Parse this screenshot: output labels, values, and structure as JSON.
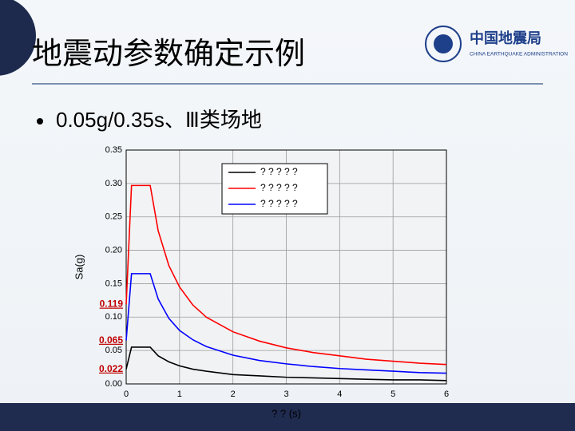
{
  "title": "地震动参数确定示例",
  "logo": {
    "name": "中国地震局",
    "english": "CHINA EARTHQUAKE ADMINISTRATION"
  },
  "bullet": "0.05g/0.35s、Ⅲ类场地",
  "chart_data": {
    "type": "line",
    "x_label": "? ?  (s)",
    "y_label": "Sa(g)",
    "x": [
      0,
      0.1,
      0.45,
      0.6,
      0.8,
      1,
      1.25,
      1.5,
      2,
      2.5,
      3,
      3.5,
      4,
      4.5,
      5,
      5.5,
      6
    ],
    "series": [
      {
        "name": "? ? ? ? ?",
        "color": "#000000",
        "values": [
          0.022,
          0.055,
          0.055,
          0.042,
          0.033,
          0.027,
          0.022,
          0.019,
          0.014,
          0.012,
          0.01,
          0.009,
          0.008,
          0.007,
          0.006,
          0.006,
          0.005
        ]
      },
      {
        "name": "? ? ? ? ?",
        "color": "#ff0000",
        "values": [
          0.119,
          0.297,
          0.297,
          0.229,
          0.177,
          0.145,
          0.118,
          0.1,
          0.078,
          0.064,
          0.054,
          0.047,
          0.042,
          0.037,
          0.034,
          0.031,
          0.029
        ]
      },
      {
        "name": "? ? ? ? ?",
        "color": "#0000ff",
        "values": [
          0.065,
          0.165,
          0.165,
          0.127,
          0.098,
          0.08,
          0.066,
          0.056,
          0.043,
          0.035,
          0.03,
          0.026,
          0.023,
          0.021,
          0.019,
          0.017,
          0.016
        ]
      }
    ],
    "xlim": [
      0,
      6
    ],
    "xticks": [
      0,
      1,
      2,
      3,
      4,
      5,
      6
    ],
    "ylim": [
      0,
      0.35
    ],
    "yticks": [
      {
        "value": 0,
        "label": "0.00"
      },
      {
        "value": 0.05,
        "label": "0.05"
      },
      {
        "value": 0.1,
        "label": "0.10"
      },
      {
        "value": 0.15,
        "label": "0.15"
      },
      {
        "value": 0.2,
        "label": "0.20"
      },
      {
        "value": 0.25,
        "label": "0.25"
      },
      {
        "value": 0.3,
        "label": "0.30"
      },
      {
        "value": 0.35,
        "label": "0.35"
      }
    ],
    "grid": true,
    "legend": "top",
    "annotations": [
      {
        "value": 0.119,
        "label": "0.119"
      },
      {
        "value": 0.065,
        "label": "0.065"
      },
      {
        "value": 0.022,
        "label": "0.022"
      }
    ],
    "annotation_color": "#c00000"
  }
}
